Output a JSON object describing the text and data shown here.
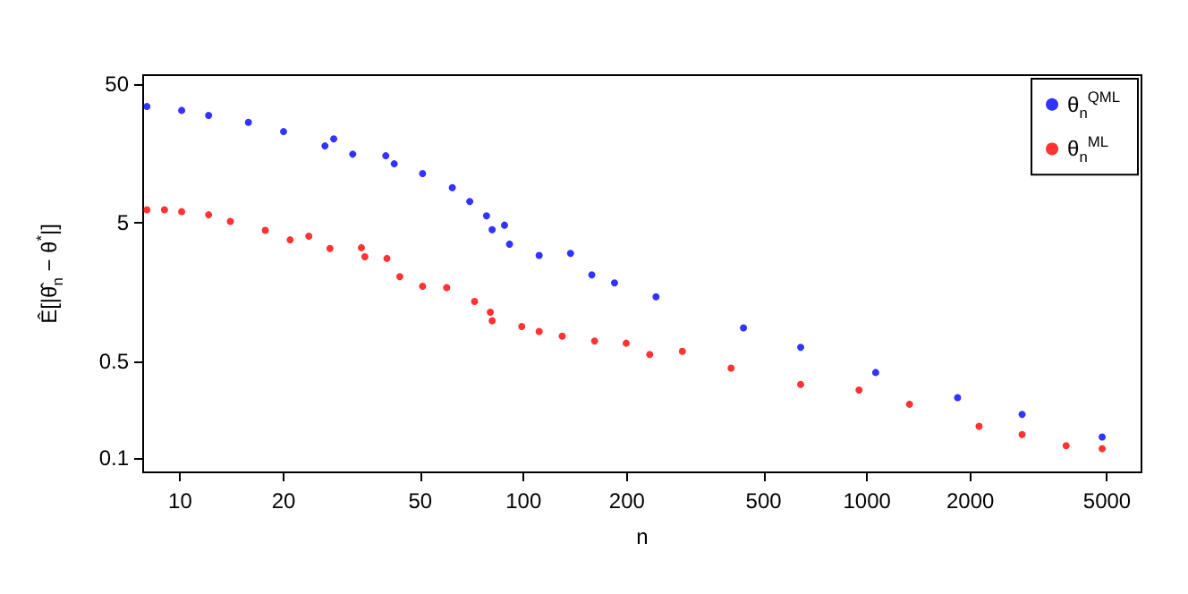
{
  "chart_data": {
    "type": "scatter",
    "xlabel": "n",
    "ylabel": "Ê[|θ̂$_{n}$ − θ$^{*}$|]",
    "log": "xy",
    "xlim": [
      7.8,
      6300
    ],
    "ylim": [
      0.079,
      58
    ],
    "xticks": [
      10,
      20,
      50,
      100,
      200,
      500,
      1000,
      2000,
      5000
    ],
    "yticks": [
      0.1,
      0.5,
      5,
      50
    ],
    "grid": false,
    "legend": "top right",
    "marker": "circle",
    "series": [
      {
        "name": "θ$_{n}$$^{QML}$",
        "color": "#0000ff",
        "x": [
          8,
          10.1,
          12.1,
          15.8,
          20,
          26.4,
          28,
          31.8,
          39.7,
          42,
          50.8,
          62,
          69.7,
          78,
          81,
          88,
          91,
          111,
          137,
          158,
          184,
          243,
          437,
          641,
          1060,
          1836,
          2830,
          4840
        ],
        "values": [
          34.5,
          32.3,
          29.7,
          26.5,
          22.7,
          17.9,
          20.1,
          15.6,
          15.2,
          13.3,
          11.3,
          8.95,
          7.1,
          5.6,
          4.45,
          4.8,
          3.5,
          2.9,
          3.0,
          2.1,
          1.84,
          1.46,
          0.87,
          0.63,
          0.415,
          0.273,
          0.207,
          0.142
        ]
      },
      {
        "name": "θ$_{n}$$^{ML}$",
        "color": "#ff0000",
        "x": [
          8,
          9,
          10.1,
          12.1,
          14,
          17.7,
          20.9,
          23.7,
          27.3,
          33.7,
          34.5,
          40,
          43.6,
          50.8,
          59.7,
          72,
          80,
          81,
          98.8,
          111,
          129.6,
          161,
          199,
          233,
          290,
          402,
          641,
          948,
          1330,
          2120,
          2830,
          3800,
          4840
        ],
        "values": [
          6.2,
          6.2,
          6.0,
          5.7,
          5.1,
          4.4,
          3.76,
          4.0,
          3.26,
          3.3,
          2.84,
          2.76,
          2.04,
          1.74,
          1.7,
          1.35,
          1.13,
          0.98,
          0.89,
          0.82,
          0.76,
          0.7,
          0.675,
          0.56,
          0.59,
          0.446,
          0.34,
          0.31,
          0.245,
          0.17,
          0.148,
          0.123,
          0.117
        ]
      }
    ]
  }
}
